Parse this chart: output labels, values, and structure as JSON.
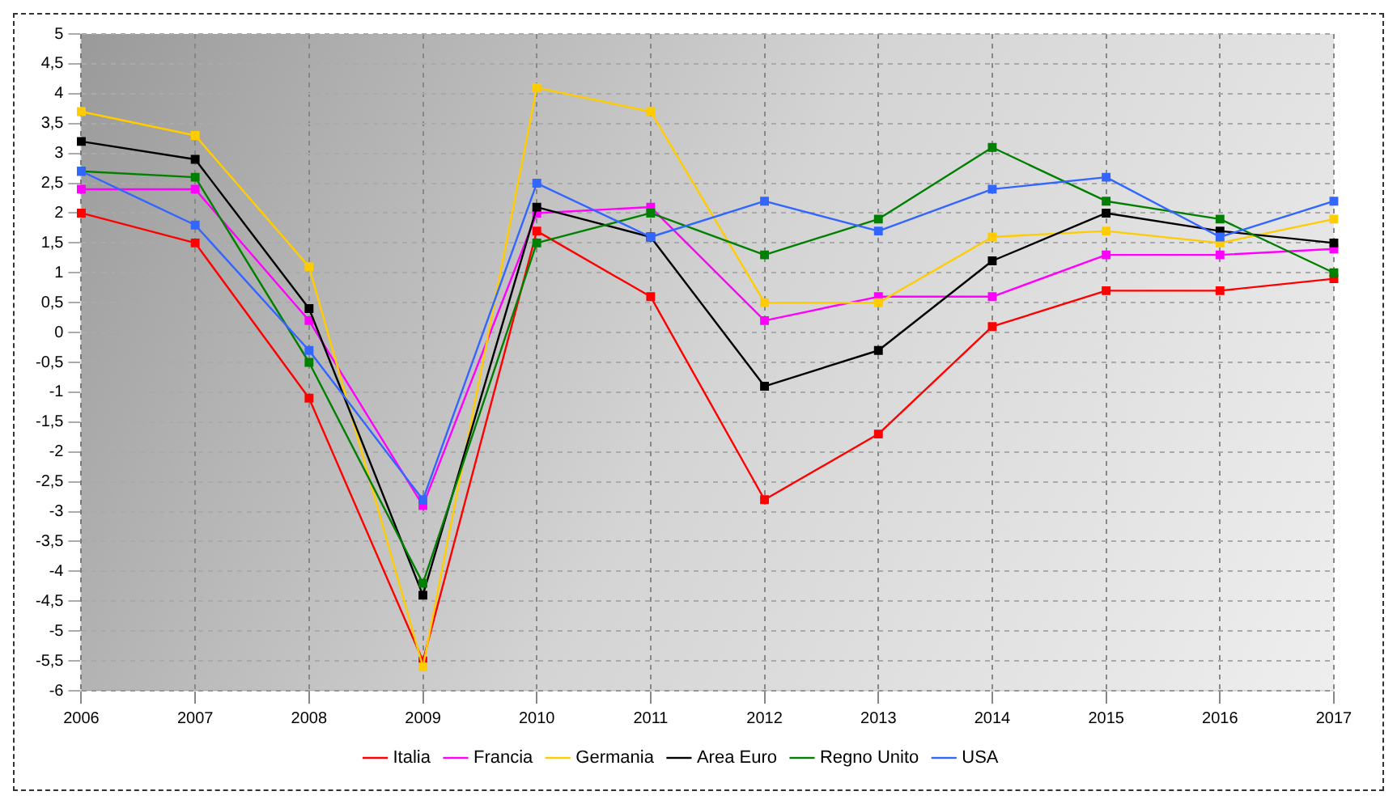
{
  "chart_data": {
    "type": "line",
    "categories": [
      "2006",
      "2007",
      "2008",
      "2009",
      "2010",
      "2011",
      "2012",
      "2013",
      "2014",
      "2015",
      "2016",
      "2017"
    ],
    "series": [
      {
        "name": "Italia",
        "color": "#ff0000",
        "values": [
          2.0,
          1.5,
          -1.1,
          -5.5,
          1.7,
          0.6,
          -2.8,
          -1.7,
          0.1,
          0.7,
          0.7,
          0.9
        ]
      },
      {
        "name": "Francia",
        "color": "#ff00ff",
        "values": [
          2.4,
          2.4,
          0.2,
          -2.9,
          2.0,
          2.1,
          0.2,
          0.6,
          0.6,
          1.3,
          1.3,
          1.4
        ]
      },
      {
        "name": "Germania",
        "color": "#ffcc00",
        "values": [
          3.7,
          3.3,
          1.1,
          -5.6,
          4.1,
          3.7,
          0.5,
          0.5,
          1.6,
          1.7,
          1.5,
          1.9
        ]
      },
      {
        "name": "Area Euro",
        "color": "#000000",
        "values": [
          3.2,
          2.9,
          0.4,
          -4.4,
          2.1,
          1.6,
          -0.9,
          -0.3,
          1.2,
          2.0,
          1.7,
          1.5
        ]
      },
      {
        "name": "Regno Unito",
        "color": "#008000",
        "values": [
          2.7,
          2.6,
          -0.5,
          -4.2,
          1.5,
          2.0,
          1.3,
          1.9,
          3.1,
          2.2,
          1.9,
          1.0
        ]
      },
      {
        "name": "USA",
        "color": "#3366ff",
        "values": [
          2.7,
          1.8,
          -0.3,
          -2.8,
          2.5,
          1.6,
          2.2,
          1.7,
          2.4,
          2.6,
          1.6,
          2.2
        ]
      }
    ],
    "ylim": [
      -6,
      5
    ],
    "yticks": [
      -6,
      {
        "value": -5.5,
        "label": "-5,5"
      },
      -5,
      {
        "value": -4.5,
        "label": "-4,5"
      },
      -4,
      {
        "value": -3.5,
        "label": "-3,5"
      },
      -3,
      {
        "value": -2.5,
        "label": "-2,5"
      },
      -2,
      {
        "value": -1.5,
        "label": "-1,5"
      },
      -1,
      {
        "value": -0.5,
        "label": "-0,5"
      },
      0,
      {
        "value": 0.5,
        "label": "0,5"
      },
      1,
      {
        "value": 1.5,
        "label": "1,5"
      },
      2,
      {
        "value": 2.5,
        "label": "2,5"
      },
      3,
      {
        "value": 3.5,
        "label": "3,5"
      },
      4,
      {
        "value": 4.5,
        "label": "4,5"
      },
      5
    ],
    "grid": true,
    "legend": "bottom",
    "marker": "square",
    "line_style": "solid"
  }
}
